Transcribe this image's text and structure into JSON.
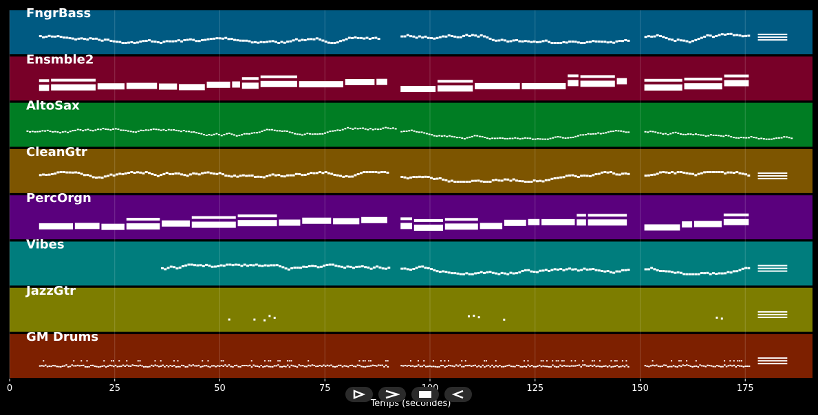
{
  "chart_data": {
    "type": "piano-roll",
    "xlabel": "Temps (secondes)",
    "xlim": [
      0,
      191
    ],
    "x_ticks": [
      0,
      25,
      50,
      75,
      100,
      125,
      150,
      175
    ],
    "grid": "vertical",
    "background": "#000000",
    "tracks": [
      {
        "name": "FngrBass",
        "color": "#005a82",
        "style": "notes",
        "segments": [
          [
            7,
            88
          ],
          [
            93,
            147
          ],
          [
            151,
            176
          ]
        ],
        "extra": [
          [
            178,
            185
          ]
        ]
      },
      {
        "name": "Ensmble2",
        "color": "#780028",
        "style": "blocks",
        "segments": [
          [
            7,
            90
          ],
          [
            93,
            147
          ],
          [
            151,
            176
          ]
        ],
        "extra": []
      },
      {
        "name": "AltoSax",
        "color": "#007d23",
        "style": "melody",
        "segments": [
          [
            4,
            92
          ],
          [
            93,
            147
          ],
          [
            151,
            186
          ]
        ],
        "extra": []
      },
      {
        "name": "CleanGtr",
        "color": "#7d5500",
        "style": "notes",
        "segments": [
          [
            7,
            90
          ],
          [
            93,
            147
          ],
          [
            151,
            176
          ]
        ],
        "extra": [
          [
            178,
            185
          ]
        ]
      },
      {
        "name": "PercOrgn",
        "color": "#5a007d",
        "style": "blocks",
        "segments": [
          [
            7,
            90
          ],
          [
            93,
            147
          ],
          [
            151,
            176
          ]
        ],
        "extra": []
      },
      {
        "name": "Vibes",
        "color": "#007d7d",
        "style": "notes",
        "segments": [
          [
            36,
            90
          ],
          [
            93,
            147
          ],
          [
            151,
            176
          ]
        ],
        "extra": [
          [
            178,
            185
          ]
        ]
      },
      {
        "name": "JazzGtr",
        "color": "#7d7d00",
        "style": "sparse",
        "segments": [
          [
            52,
            63
          ],
          [
            109,
            120
          ],
          [
            168,
            176
          ]
        ],
        "extra": [
          [
            178,
            185
          ]
        ]
      },
      {
        "name": "GM Drums",
        "color": "#7d2000",
        "style": "drums",
        "segments": [
          [
            7,
            90
          ],
          [
            93,
            147
          ],
          [
            151,
            176
          ]
        ],
        "extra": [
          [
            178,
            185
          ]
        ]
      }
    ]
  },
  "controls": [
    {
      "name": "play-button",
      "icon": "play-icon"
    },
    {
      "name": "forward-button",
      "icon": "forward-icon"
    },
    {
      "name": "stop-button",
      "icon": "stop-icon"
    },
    {
      "name": "back-button",
      "icon": "rewind-icon"
    }
  ]
}
